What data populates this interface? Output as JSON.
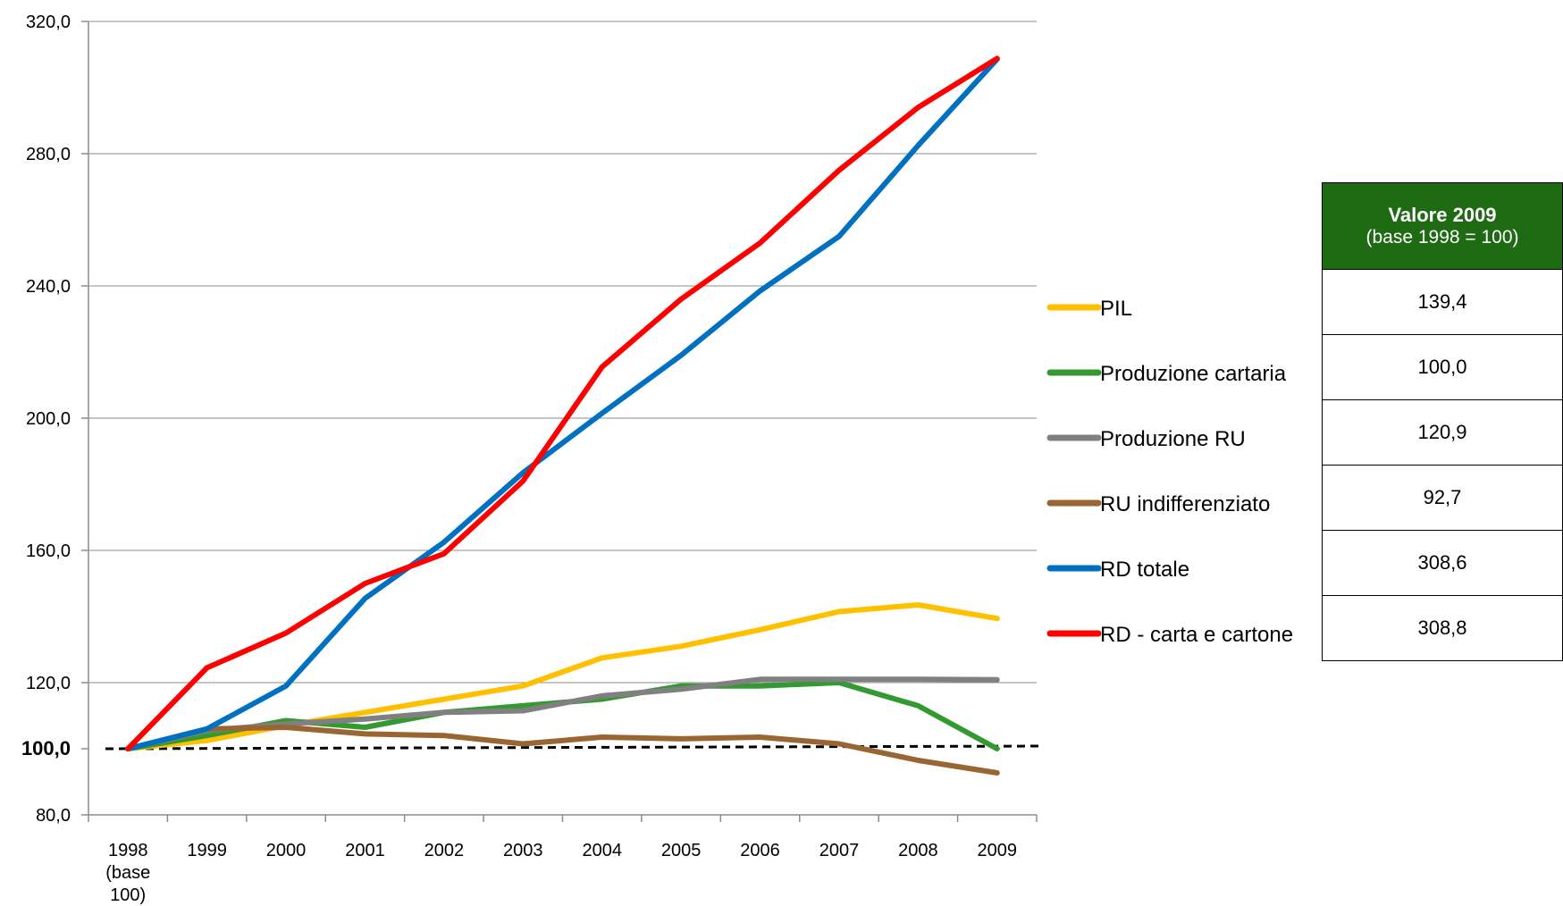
{
  "chart_data": {
    "type": "line",
    "categories": [
      "1998\n(base\n100)",
      "1999",
      "2000",
      "2001",
      "2002",
      "2003",
      "2004",
      "2005",
      "2006",
      "2007",
      "2008",
      "2009"
    ],
    "x_tick_labels": [
      [
        "1998",
        "(base",
        "100)"
      ],
      [
        "1999"
      ],
      [
        "2000"
      ],
      [
        "2001"
      ],
      [
        "2002"
      ],
      [
        "2003"
      ],
      [
        "2004"
      ],
      [
        "2005"
      ],
      [
        "2006"
      ],
      [
        "2007"
      ],
      [
        "2008"
      ],
      [
        "2009"
      ]
    ],
    "y_tick_labels": [
      "80,0",
      "100,0",
      "120,0",
      "160,0",
      "200,0",
      "240,0",
      "280,0",
      "320,0"
    ],
    "y_ticks": [
      80,
      100,
      120,
      160,
      200,
      240,
      280,
      320
    ],
    "ylim": [
      80,
      320
    ],
    "grid": true,
    "legend_position": "right",
    "reference_line": {
      "value": 100,
      "style": "dashed",
      "color": "#000000"
    },
    "series": [
      {
        "name": "PIL",
        "color": "#FFC000",
        "values": [
          100,
          102.5,
          107,
          111,
          115,
          119,
          127.5,
          131,
          136,
          141.5,
          143.5,
          139.4
        ]
      },
      {
        "name": "Produzione cartaria",
        "color": "#339933",
        "values": [
          100,
          104,
          108.5,
          106.5,
          111,
          113,
          115,
          119,
          119,
          120,
          113,
          100.0
        ]
      },
      {
        "name": "Produzione RU",
        "color": "#808080",
        "values": [
          100,
          105.5,
          107.5,
          109,
          111,
          111.5,
          116,
          118,
          121,
          121,
          121,
          120.9
        ]
      },
      {
        "name": "RU indifferenziato",
        "color": "#996633",
        "values": [
          100,
          106,
          106.5,
          104.5,
          104,
          101.5,
          103.5,
          103,
          103.5,
          101.5,
          96.5,
          92.7
        ]
      },
      {
        "name": "RD totale",
        "color": "#0070C0",
        "values": [
          100,
          106,
          119,
          145.5,
          162.5,
          183.5,
          201.5,
          219,
          238.5,
          255,
          282.5,
          308.6
        ]
      },
      {
        "name": "RD - carta e cartone",
        "color": "#FF0000",
        "values": [
          100,
          124.5,
          135,
          150,
          159,
          181,
          215.5,
          236,
          253,
          275,
          294,
          308.8
        ]
      }
    ]
  },
  "summary_table": {
    "header_title": "Valore 2009",
    "header_subtitle": "(base 1998 = 100)",
    "rows": [
      "139,4",
      "100,0",
      "120,9",
      "92,7",
      "308,6",
      "308,8"
    ]
  }
}
